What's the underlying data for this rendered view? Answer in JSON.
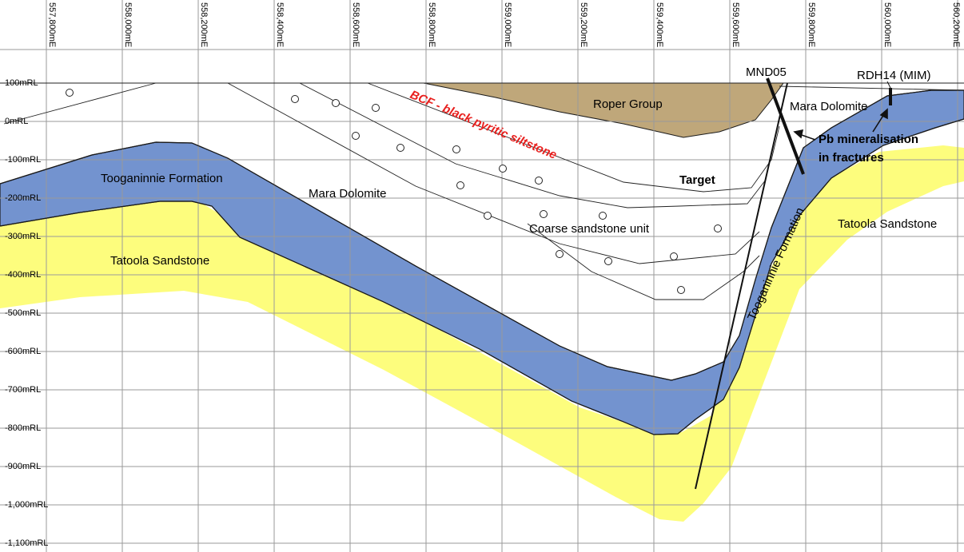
{
  "x_axis": {
    "labels": [
      "557,800mE",
      "558,000mE",
      "558,200mE",
      "558,400mE",
      "558,600mE",
      "558,800mE",
      "559,000mE",
      "559,200mE",
      "559,400mE",
      "559,600mE",
      "559,800mE",
      "560,000mE",
      "560,200mE"
    ]
  },
  "y_axis": {
    "labels": [
      "100mRL",
      "0mRL",
      "-100mRL",
      "-200mRL",
      "-300mRL",
      "-400mRL",
      "-500mRL",
      "-600mRL",
      "-700mRL",
      "-800mRL",
      "-900mRL",
      "-1,000mRL",
      "-1,100mRL"
    ]
  },
  "units": {
    "roper_group": "Roper Group",
    "bcf": "BCF - black pyritic siltstone",
    "mara_dolomite_left": "Mara Dolomite",
    "mara_dolomite_right": "Mara Dolomite",
    "target": "Target",
    "coarse_sandstone": "Coarse sandstone unit",
    "tooganinnie_left": "Tooganinnie Formation",
    "tooganinnie_right": "Tooganinnie Formation",
    "tatoola_left": "Tatoola Sandstone",
    "tatoola_right": "Tatoola Sandstone"
  },
  "drillholes": {
    "mnd05": "MND05",
    "rdh14": "RDH14 (MIM)"
  },
  "annotation": {
    "line1": "Pb mineralisation",
    "line2": "in fractures"
  },
  "colors": {
    "tooganinnie": "#7393cf",
    "tatoola": "#fdfd7d",
    "roper": "#bfa77a",
    "grid": "#9a9a9a",
    "bcf_text": "#e8201e"
  }
}
